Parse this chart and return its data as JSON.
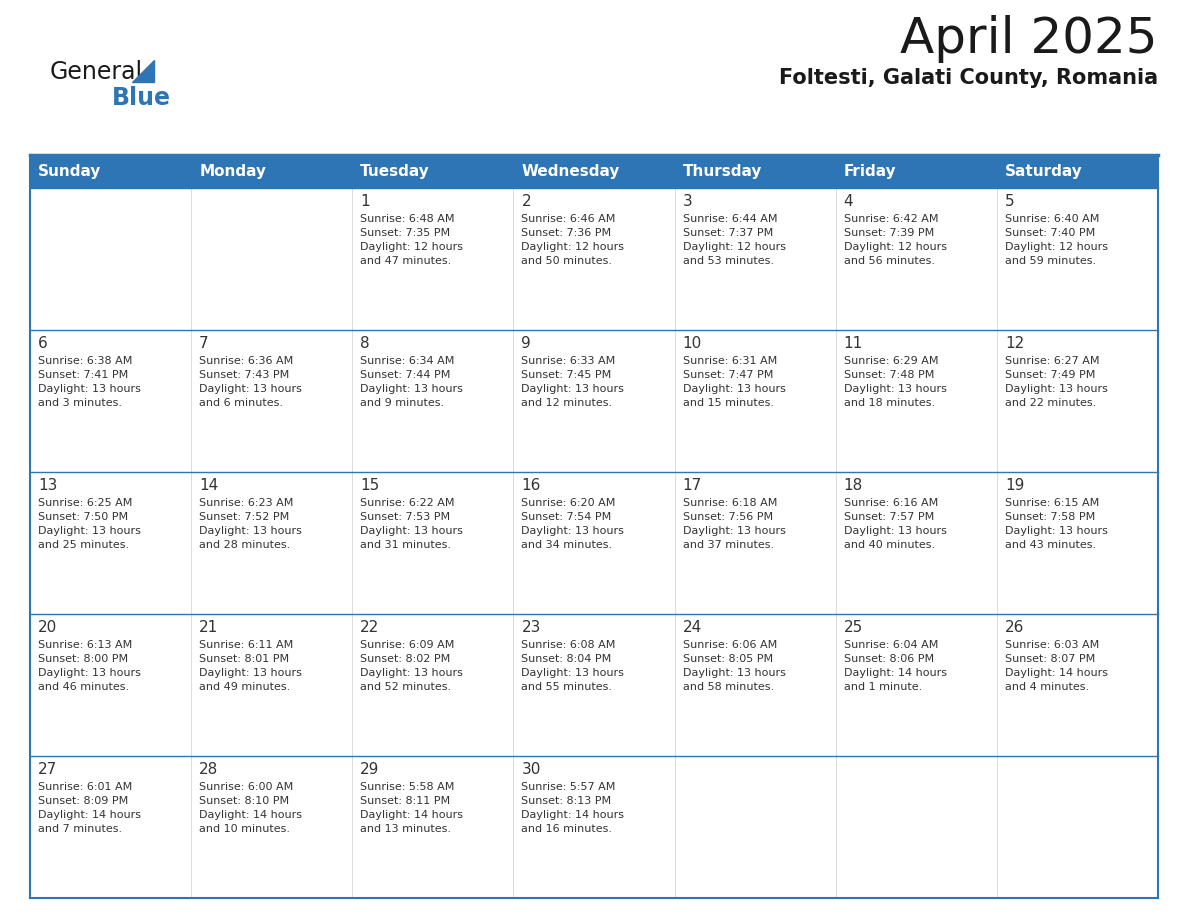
{
  "title": "April 2025",
  "subtitle": "Foltesti, Galati County, Romania",
  "header_bg": "#2E75B6",
  "header_text_color": "#FFFFFF",
  "cell_bg_light": "#F2F2F2",
  "cell_bg_white": "#FFFFFF",
  "row_border_color": "#2E75B6",
  "cell_border_color": "#CCCCCC",
  "text_color": "#333333",
  "days_of_week": [
    "Sunday",
    "Monday",
    "Tuesday",
    "Wednesday",
    "Thursday",
    "Friday",
    "Saturday"
  ],
  "calendar_data": [
    [
      {
        "day": "",
        "info": ""
      },
      {
        "day": "",
        "info": ""
      },
      {
        "day": "1",
        "info": "Sunrise: 6:48 AM\nSunset: 7:35 PM\nDaylight: 12 hours\nand 47 minutes."
      },
      {
        "day": "2",
        "info": "Sunrise: 6:46 AM\nSunset: 7:36 PM\nDaylight: 12 hours\nand 50 minutes."
      },
      {
        "day": "3",
        "info": "Sunrise: 6:44 AM\nSunset: 7:37 PM\nDaylight: 12 hours\nand 53 minutes."
      },
      {
        "day": "4",
        "info": "Sunrise: 6:42 AM\nSunset: 7:39 PM\nDaylight: 12 hours\nand 56 minutes."
      },
      {
        "day": "5",
        "info": "Sunrise: 6:40 AM\nSunset: 7:40 PM\nDaylight: 12 hours\nand 59 minutes."
      }
    ],
    [
      {
        "day": "6",
        "info": "Sunrise: 6:38 AM\nSunset: 7:41 PM\nDaylight: 13 hours\nand 3 minutes."
      },
      {
        "day": "7",
        "info": "Sunrise: 6:36 AM\nSunset: 7:43 PM\nDaylight: 13 hours\nand 6 minutes."
      },
      {
        "day": "8",
        "info": "Sunrise: 6:34 AM\nSunset: 7:44 PM\nDaylight: 13 hours\nand 9 minutes."
      },
      {
        "day": "9",
        "info": "Sunrise: 6:33 AM\nSunset: 7:45 PM\nDaylight: 13 hours\nand 12 minutes."
      },
      {
        "day": "10",
        "info": "Sunrise: 6:31 AM\nSunset: 7:47 PM\nDaylight: 13 hours\nand 15 minutes."
      },
      {
        "day": "11",
        "info": "Sunrise: 6:29 AM\nSunset: 7:48 PM\nDaylight: 13 hours\nand 18 minutes."
      },
      {
        "day": "12",
        "info": "Sunrise: 6:27 AM\nSunset: 7:49 PM\nDaylight: 13 hours\nand 22 minutes."
      }
    ],
    [
      {
        "day": "13",
        "info": "Sunrise: 6:25 AM\nSunset: 7:50 PM\nDaylight: 13 hours\nand 25 minutes."
      },
      {
        "day": "14",
        "info": "Sunrise: 6:23 AM\nSunset: 7:52 PM\nDaylight: 13 hours\nand 28 minutes."
      },
      {
        "day": "15",
        "info": "Sunrise: 6:22 AM\nSunset: 7:53 PM\nDaylight: 13 hours\nand 31 minutes."
      },
      {
        "day": "16",
        "info": "Sunrise: 6:20 AM\nSunset: 7:54 PM\nDaylight: 13 hours\nand 34 minutes."
      },
      {
        "day": "17",
        "info": "Sunrise: 6:18 AM\nSunset: 7:56 PM\nDaylight: 13 hours\nand 37 minutes."
      },
      {
        "day": "18",
        "info": "Sunrise: 6:16 AM\nSunset: 7:57 PM\nDaylight: 13 hours\nand 40 minutes."
      },
      {
        "day": "19",
        "info": "Sunrise: 6:15 AM\nSunset: 7:58 PM\nDaylight: 13 hours\nand 43 minutes."
      }
    ],
    [
      {
        "day": "20",
        "info": "Sunrise: 6:13 AM\nSunset: 8:00 PM\nDaylight: 13 hours\nand 46 minutes."
      },
      {
        "day": "21",
        "info": "Sunrise: 6:11 AM\nSunset: 8:01 PM\nDaylight: 13 hours\nand 49 minutes."
      },
      {
        "day": "22",
        "info": "Sunrise: 6:09 AM\nSunset: 8:02 PM\nDaylight: 13 hours\nand 52 minutes."
      },
      {
        "day": "23",
        "info": "Sunrise: 6:08 AM\nSunset: 8:04 PM\nDaylight: 13 hours\nand 55 minutes."
      },
      {
        "day": "24",
        "info": "Sunrise: 6:06 AM\nSunset: 8:05 PM\nDaylight: 13 hours\nand 58 minutes."
      },
      {
        "day": "25",
        "info": "Sunrise: 6:04 AM\nSunset: 8:06 PM\nDaylight: 14 hours\nand 1 minute."
      },
      {
        "day": "26",
        "info": "Sunrise: 6:03 AM\nSunset: 8:07 PM\nDaylight: 14 hours\nand 4 minutes."
      }
    ],
    [
      {
        "day": "27",
        "info": "Sunrise: 6:01 AM\nSunset: 8:09 PM\nDaylight: 14 hours\nand 7 minutes."
      },
      {
        "day": "28",
        "info": "Sunrise: 6:00 AM\nSunset: 8:10 PM\nDaylight: 14 hours\nand 10 minutes."
      },
      {
        "day": "29",
        "info": "Sunrise: 5:58 AM\nSunset: 8:11 PM\nDaylight: 14 hours\nand 13 minutes."
      },
      {
        "day": "30",
        "info": "Sunrise: 5:57 AM\nSunset: 8:13 PM\nDaylight: 14 hours\nand 16 minutes."
      },
      {
        "day": "",
        "info": ""
      },
      {
        "day": "",
        "info": ""
      },
      {
        "day": "",
        "info": ""
      }
    ]
  ],
  "logo_color_general": "#1a1a1a",
  "logo_color_blue": "#2E75B6",
  "logo_triangle_color": "#2E75B6",
  "title_fontsize": 36,
  "subtitle_fontsize": 15,
  "day_header_fontsize": 11,
  "day_num_fontsize": 11,
  "cell_text_fontsize": 8
}
